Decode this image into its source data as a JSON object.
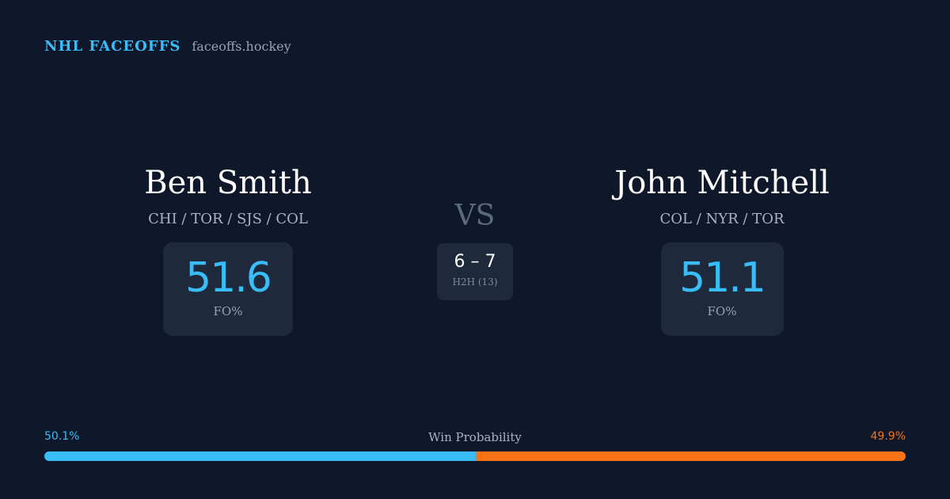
{
  "brand": {
    "name": "NHL FACEOFFS",
    "domain": "faceoffs.hockey"
  },
  "players": {
    "left": {
      "name": "Ben Smith",
      "teams": "CHI / TOR / SJS / COL",
      "stat_value": "51.6",
      "stat_label": "FO%"
    },
    "right": {
      "name": "John Mitchell",
      "teams": "COL / NYR / TOR",
      "stat_value": "51.1",
      "stat_label": "FO%"
    }
  },
  "matchup": {
    "vs_label": "VS",
    "h2h_score": "6 – 7",
    "h2h_label": "H2H (13)"
  },
  "win_probability": {
    "title": "Win Probability",
    "left_label": "50.1%",
    "right_label": "49.9%",
    "left_value": 50.1,
    "right_value": 49.9
  },
  "colors": {
    "background": "#0f172a",
    "accent_blue": "#38bdf8",
    "accent_orange": "#f97316",
    "card": "#1e293b"
  }
}
